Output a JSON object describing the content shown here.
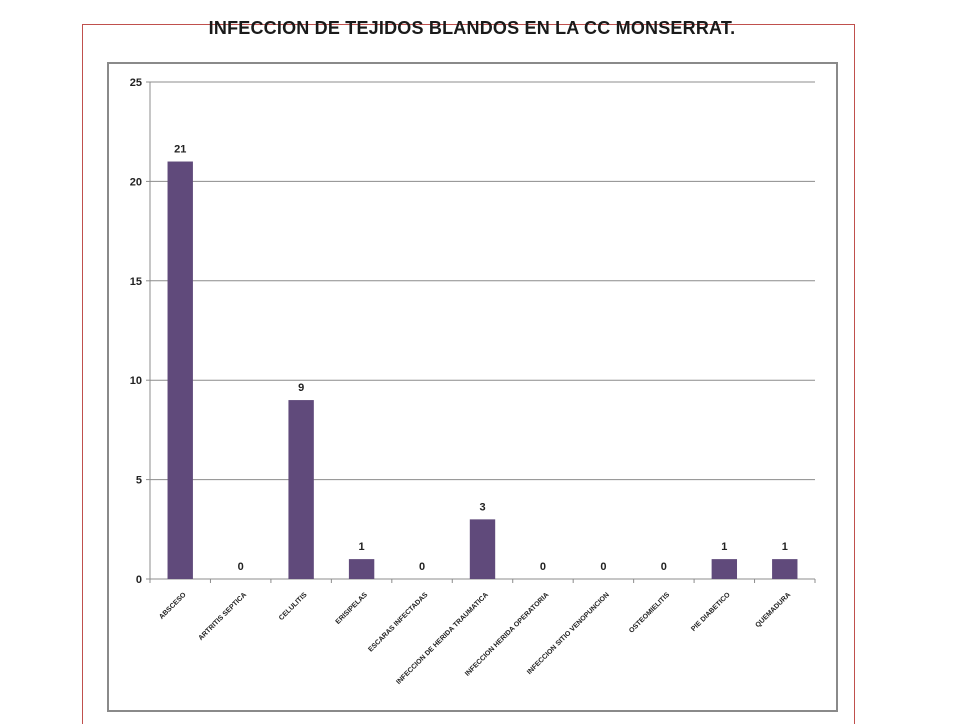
{
  "chart_data": {
    "type": "bar",
    "title": "INFECCION DE TEJIDOS BLANDOS EN LA CC MONSERRAT.",
    "xlabel": "",
    "ylabel": "",
    "ylim": [
      0,
      25
    ],
    "yticks": [
      "0",
      "5",
      "10",
      "15",
      "20",
      "25"
    ],
    "grid": true,
    "categories": [
      "ABSCESO",
      "ARTRITIS SEPTICA",
      "CELULITIS",
      "ERISIPELAS",
      "ESCARAS INFECTADAS",
      "INFECCION DE HERIDA TRAUMATICA",
      "INFECCION HERIDA OPERATORIA",
      "INFECCION SITIO VENOPUNCION",
      "OSTEOMIELITIS",
      "PIE DIABETICO",
      "QUEMADURA"
    ],
    "values": [
      21,
      0,
      9,
      1,
      0,
      3,
      0,
      0,
      0,
      1,
      1
    ],
    "bar_color": "#604a7b"
  }
}
